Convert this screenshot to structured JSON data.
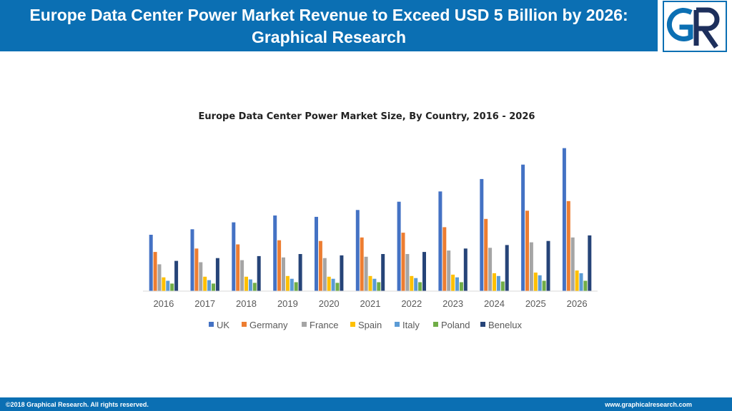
{
  "header": {
    "title": "Europe Data Center Power Market Revenue to Exceed USD 5 Billion by 2026: Graphical Research"
  },
  "logo": {
    "letters": "GR",
    "colors": {
      "primary": "#0b6fb3",
      "secondary": "#1d2f5c"
    }
  },
  "chart_data": {
    "type": "bar",
    "title": "Europe Data Center Power Market Size, By Country, 2016 - 2026",
    "categories": [
      "2016",
      "2017",
      "2018",
      "2019",
      "2020",
      "2021",
      "2022",
      "2023",
      "2024",
      "2025",
      "2026"
    ],
    "series": [
      {
        "name": "UK",
        "color": "#4472c4",
        "values": [
          82,
          90,
          100,
          110,
          108,
          118,
          130,
          145,
          163,
          184,
          208
        ]
      },
      {
        "name": "Germany",
        "color": "#ed7d31",
        "values": [
          57,
          62,
          68,
          74,
          73,
          78,
          85,
          93,
          105,
          117,
          131
        ]
      },
      {
        "name": "France",
        "color": "#a5a5a5",
        "values": [
          39,
          42,
          45,
          49,
          48,
          50,
          54,
          59,
          63,
          71,
          78
        ]
      },
      {
        "name": "Spain",
        "color": "#ffc000",
        "values": [
          20,
          21,
          21,
          22,
          21,
          22,
          22,
          24,
          26,
          27,
          30
        ]
      },
      {
        "name": "Italy",
        "color": "#5b9bd5",
        "values": [
          15,
          16,
          17,
          18,
          18,
          18,
          19,
          20,
          22,
          23,
          26
        ]
      },
      {
        "name": "Poland",
        "color": "#70ad47",
        "values": [
          11,
          11,
          12,
          13,
          12,
          13,
          13,
          13,
          14,
          15,
          15
        ]
      },
      {
        "name": "Benelux",
        "color": "#264478",
        "values": [
          44,
          48,
          51,
          54,
          52,
          54,
          57,
          62,
          67,
          73,
          81
        ]
      }
    ],
    "ylim": [
      0,
      220
    ],
    "grid": false,
    "legend_position": "bottom"
  },
  "footer": {
    "copyright": "©2018 Graphical Research. All rights reserved.",
    "website": "www.graphicalresearch.com"
  }
}
